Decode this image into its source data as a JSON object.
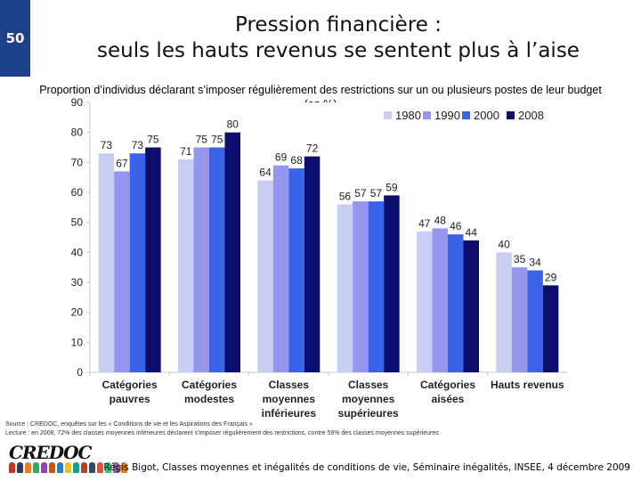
{
  "slide_number": "50",
  "title_line1": "Pression financière :",
  "title_line2": "seuls les hauts revenus se sentent plus à l’aise",
  "subtitle_line1": "Proportion d’individus déclarant s’imposer régulièrement des restrictions sur un ou plusieurs postes de leur budget",
  "subtitle_line2": "(en %)",
  "source_line1": "Source : CREDOC, enquêtes sur les « Conditions de vie et les Aspirations des Français »",
  "source_line2": "Lecture : en 2008, 72% des classes moyennes inférieures déclarent s’imposer régulièrement des restrictions, contre 59% des classes moyennes supérieures",
  "logo_text": "CREDOC",
  "footer_text": "Régis Bigot, Classes moyennes et inégalités de conditions de vie, Séminaire inégalités, INSEE, 4 décembre 2009",
  "colors": {
    "header_bar": "#1e3f8a",
    "series": [
      "#c9cdf4",
      "#9597ee",
      "#3a63e8",
      "#0c0e6e"
    ]
  },
  "chart_data": {
    "type": "bar",
    "title": "",
    "xlabel": "",
    "ylabel": "",
    "ylim": [
      0,
      90
    ],
    "yticks": [
      0,
      10,
      20,
      30,
      40,
      50,
      60,
      70,
      80,
      90
    ],
    "grid": false,
    "legend": "top-right",
    "categories": [
      [
        "Catégories",
        "pauvres"
      ],
      [
        "Catégories",
        "modestes"
      ],
      [
        "Classes",
        "moyennes",
        "inférieures"
      ],
      [
        "Classes",
        "moyennes",
        "supérieures"
      ],
      [
        "Catégories",
        "aisées"
      ],
      [
        "Hauts revenus"
      ]
    ],
    "series": [
      {
        "name": "1980",
        "values": [
          73,
          71,
          64,
          56,
          47,
          40
        ]
      },
      {
        "name": "1990",
        "values": [
          67,
          75,
          69,
          57,
          48,
          35
        ]
      },
      {
        "name": "2000",
        "values": [
          73,
          75,
          68,
          57,
          46,
          34
        ]
      },
      {
        "name": "2008",
        "values": [
          75,
          80,
          72,
          59,
          44,
          29
        ]
      }
    ]
  }
}
